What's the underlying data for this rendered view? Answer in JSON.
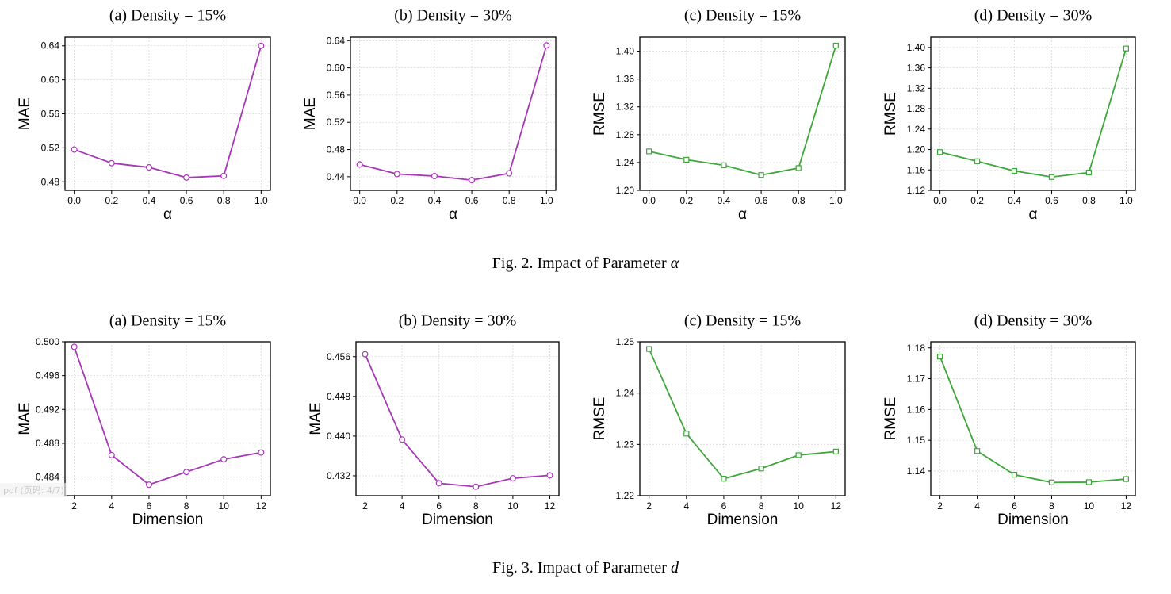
{
  "figures": [
    {
      "caption_prefix": "Fig. 2.  Impact of Parameter ",
      "caption_symbol": "α",
      "charts": [
        {
          "type": "line",
          "title": "(a) Density = 15%",
          "xlabel": "α",
          "ylabel": "MAE",
          "color": "#a637b6",
          "marker": "circle",
          "x": [
            0.0,
            0.2,
            0.4,
            0.6,
            0.8,
            1.0
          ],
          "xticks": [
            "0.0",
            "0.2",
            "0.4",
            "0.6",
            "0.8",
            "1.0"
          ],
          "values": [
            0.518,
            0.502,
            0.497,
            0.485,
            0.487,
            0.64
          ],
          "ylim": [
            0.47,
            0.65
          ],
          "yticks": [
            0.48,
            0.52,
            0.56,
            0.6,
            0.64
          ],
          "ytick_labels": [
            "0.48",
            "0.52",
            "0.56",
            "0.60",
            "0.64"
          ],
          "grid": true
        },
        {
          "type": "line",
          "title": "(b) Density = 30%",
          "xlabel": "α",
          "ylabel": "MAE",
          "color": "#a637b6",
          "marker": "circle",
          "x": [
            0.0,
            0.2,
            0.4,
            0.6,
            0.8,
            1.0
          ],
          "xticks": [
            "0.0",
            "0.2",
            "0.4",
            "0.6",
            "0.8",
            "1.0"
          ],
          "values": [
            0.458,
            0.444,
            0.441,
            0.435,
            0.445,
            0.633
          ],
          "ylim": [
            0.42,
            0.645
          ],
          "yticks": [
            0.44,
            0.48,
            0.52,
            0.56,
            0.6,
            0.64
          ],
          "ytick_labels": [
            "0.44",
            "0.48",
            "0.52",
            "0.56",
            "0.60",
            "0.64"
          ],
          "grid": true
        },
        {
          "type": "line",
          "title": "(c) Density = 15%",
          "xlabel": "α",
          "ylabel": "RMSE",
          "color": "#3ea63a",
          "marker": "square",
          "x": [
            0.0,
            0.2,
            0.4,
            0.6,
            0.8,
            1.0
          ],
          "xticks": [
            "0.0",
            "0.2",
            "0.4",
            "0.6",
            "0.8",
            "1.0"
          ],
          "values": [
            1.256,
            1.244,
            1.236,
            1.222,
            1.232,
            1.408
          ],
          "ylim": [
            1.2,
            1.42
          ],
          "yticks": [
            1.2,
            1.24,
            1.28,
            1.32,
            1.36,
            1.4
          ],
          "ytick_labels": [
            "1.20",
            "1.24",
            "1.28",
            "1.32",
            "1.36",
            "1.40"
          ],
          "grid": true
        },
        {
          "type": "line",
          "title": "(d) Density = 30%",
          "xlabel": "α",
          "ylabel": "RMSE",
          "color": "#3ea63a",
          "marker": "square",
          "x": [
            0.0,
            0.2,
            0.4,
            0.6,
            0.8,
            1.0
          ],
          "xticks": [
            "0.0",
            "0.2",
            "0.4",
            "0.6",
            "0.8",
            "1.0"
          ],
          "values": [
            1.195,
            1.177,
            1.158,
            1.146,
            1.155,
            1.398
          ],
          "ylim": [
            1.12,
            1.42
          ],
          "yticks": [
            1.12,
            1.16,
            1.2,
            1.24,
            1.28,
            1.32,
            1.36,
            1.4
          ],
          "ytick_labels": [
            "1.12",
            "1.16",
            "1.20",
            "1.24",
            "1.28",
            "1.32",
            "1.36",
            "1.40"
          ],
          "grid": true
        }
      ]
    },
    {
      "caption_prefix": "Fig. 3.  Impact of Parameter ",
      "caption_symbol": "d",
      "charts": [
        {
          "type": "line",
          "title": "(a) Density = 15%",
          "xlabel": "Dimension",
          "ylabel": "MAE",
          "color": "#a637b6",
          "marker": "circle",
          "x": [
            2,
            4,
            6,
            8,
            10,
            12
          ],
          "xticks": [
            "2",
            "4",
            "6",
            "8",
            "10",
            "12"
          ],
          "values": [
            0.4994,
            0.4866,
            0.4831,
            0.4846,
            0.4861,
            0.4869
          ],
          "ylim": [
            0.4818,
            0.5
          ],
          "yticks": [
            0.484,
            0.488,
            0.492,
            0.496,
            0.5
          ],
          "ytick_labels": [
            "0.484",
            "0.488",
            "0.492",
            "0.496",
            "0.500"
          ],
          "grid": true
        },
        {
          "type": "line",
          "title": "(b) Density = 30%",
          "xlabel": "Dimension",
          "ylabel": "MAE",
          "color": "#a637b6",
          "marker": "circle",
          "x": [
            2,
            4,
            6,
            8,
            10,
            12
          ],
          "xticks": [
            "2",
            "4",
            "6",
            "8",
            "10",
            "12"
          ],
          "values": [
            0.4565,
            0.4393,
            0.4305,
            0.4298,
            0.4315,
            0.4321
          ],
          "ylim": [
            0.428,
            0.459
          ],
          "yticks": [
            0.432,
            0.44,
            0.448,
            0.456
          ],
          "ytick_labels": [
            "0.432",
            "0.440",
            "0.448",
            "0.456"
          ],
          "grid": true
        },
        {
          "type": "line",
          "title": "(c) Density = 15%",
          "xlabel": "Dimension",
          "ylabel": "RMSE",
          "color": "#3ea63a",
          "marker": "square",
          "x": [
            2,
            4,
            6,
            8,
            10,
            12
          ],
          "xticks": [
            "2",
            "4",
            "6",
            "8",
            "10",
            "12"
          ],
          "values": [
            1.2486,
            1.2321,
            1.2233,
            1.2253,
            1.2279,
            1.2286
          ],
          "ylim": [
            1.22,
            1.25
          ],
          "yticks": [
            1.22,
            1.23,
            1.24,
            1.25
          ],
          "ytick_labels": [
            "1.22",
            "1.23",
            "1.24",
            "1.25"
          ],
          "grid": true
        },
        {
          "type": "line",
          "title": "(d) Density = 30%",
          "xlabel": "Dimension",
          "ylabel": "RMSE",
          "color": "#3ea63a",
          "marker": "square",
          "x": [
            2,
            4,
            6,
            8,
            10,
            12
          ],
          "xticks": [
            "2",
            "4",
            "6",
            "8",
            "10",
            "12"
          ],
          "values": [
            1.1772,
            1.1465,
            1.1388,
            1.1363,
            1.1364,
            1.1374
          ],
          "ylim": [
            1.132,
            1.182
          ],
          "yticks": [
            1.14,
            1.15,
            1.16,
            1.17,
            1.18
          ],
          "ytick_labels": [
            "1.14",
            "1.15",
            "1.16",
            "1.17",
            "1.18"
          ],
          "grid": true
        }
      ]
    }
  ],
  "watermark": "pdf (页码: 4/7)"
}
